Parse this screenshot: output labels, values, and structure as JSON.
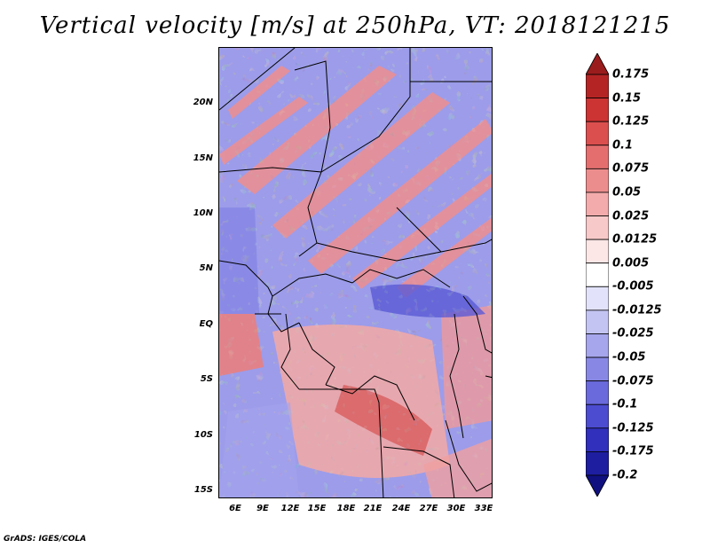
{
  "title": "Vertical velocity [m/s] at 250hPa, VT: 2018121215",
  "footer": "GrADS: IGES/COLA",
  "map": {
    "lat_labels": [
      "20N",
      "15N",
      "10N",
      "5N",
      "EQ",
      "5S",
      "10S",
      "15S"
    ],
    "lon_labels": [
      "6E",
      "9E",
      "12E",
      "15E",
      "18E",
      "21E",
      "24E",
      "27E",
      "30E",
      "33E"
    ],
    "lat_range": [
      -16,
      24
    ],
    "lon_range": [
      3,
      34
    ]
  },
  "colorbar": {
    "levels": [
      "0.175",
      "0.15",
      "0.125",
      "0.1",
      "0.075",
      "0.05",
      "0.025",
      "0.0125",
      "0.005",
      "-0.005",
      "-0.0125",
      "-0.025",
      "-0.05",
      "-0.075",
      "-0.1",
      "-0.125",
      "-0.175",
      "-0.2"
    ],
    "colors": [
      "#9b1c1c",
      "#b52424",
      "#cc3333",
      "#dc4f4f",
      "#e46e6e",
      "#ec8d8d",
      "#f3abab",
      "#f8c9c9",
      "#fce6e6",
      "#ffffff",
      "#e2e2fa",
      "#c4c4f3",
      "#a6a6ec",
      "#8888e4",
      "#6a6adc",
      "#4c4cd0",
      "#3030bc",
      "#1e1ea0",
      "#101080"
    ]
  }
}
